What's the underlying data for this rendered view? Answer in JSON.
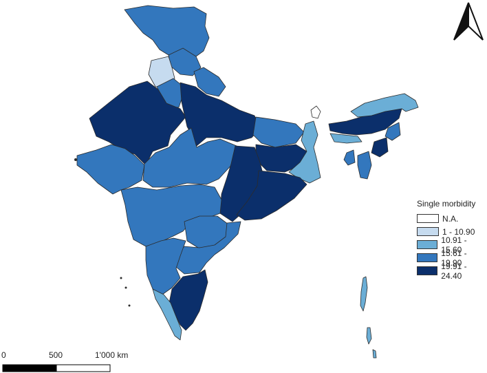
{
  "colors": {
    "na": "#ffffff",
    "c1": "#c6dbef",
    "c2": "#6baed6",
    "c3": "#3377bd",
    "c4": "#0b2f6b",
    "outline": "#2b2b2b"
  },
  "legend": {
    "title": "Single morbidity",
    "items": [
      {
        "label": "N.A.",
        "class": "na"
      },
      {
        "label": "1 - 10.90",
        "class": "c1"
      },
      {
        "label": "10.91 - 15.60",
        "class": "c2"
      },
      {
        "label": "15.61 - 19.90",
        "class": "c3"
      },
      {
        "label": "19.91 - 24.40",
        "class": "c4"
      }
    ]
  },
  "scale_bar": {
    "labels": [
      "0",
      "500",
      "1'000 km"
    ]
  },
  "north_arrow_icon": "north-arrow-icon"
}
